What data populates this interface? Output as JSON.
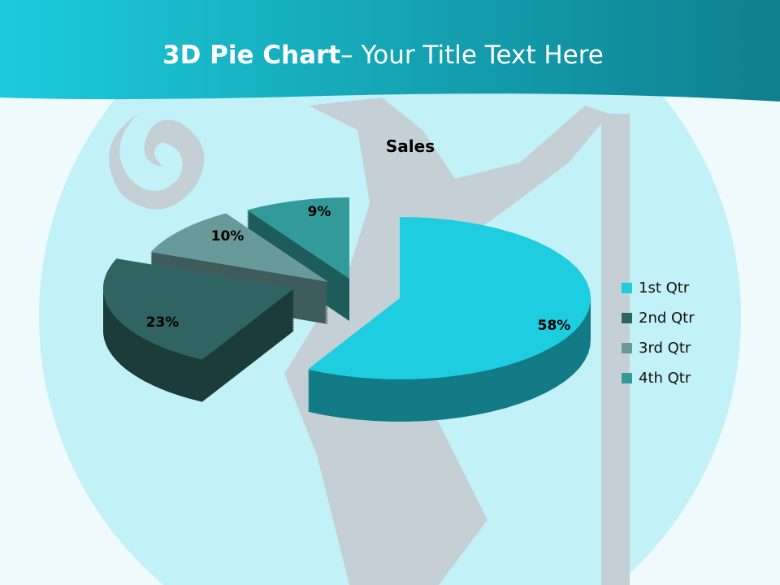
{
  "slide": {
    "title_bold": "3D Pie Chart",
    "title_rest": "– Your Title Text Here"
  },
  "chart_data": {
    "type": "pie",
    "style": "3d-exploded",
    "title": "Sales",
    "categories": [
      "1st Qtr",
      "2nd Qtr",
      "3rd Qtr",
      "4th Qtr"
    ],
    "values": [
      58,
      23,
      10,
      9
    ],
    "data_labels": [
      "58%",
      "23%",
      "10%",
      "9%"
    ],
    "colors": [
      "#1ecde0",
      "#2f6462",
      "#679a99",
      "#329a98"
    ],
    "legend_position": "right"
  }
}
